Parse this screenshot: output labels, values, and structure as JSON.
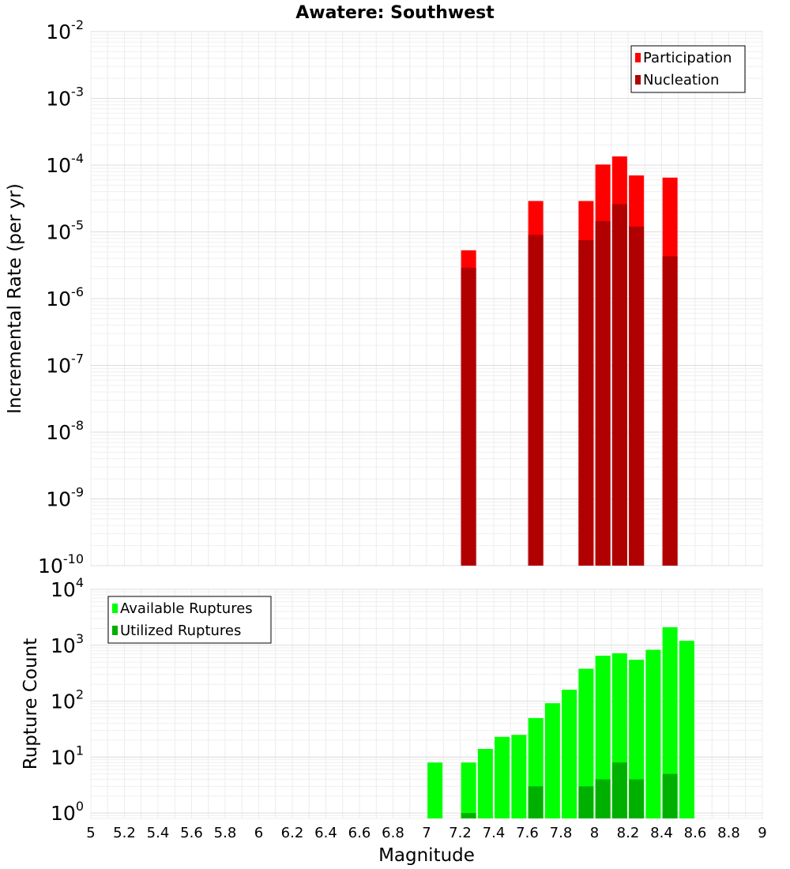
{
  "chart_data": [
    {
      "type": "bar",
      "panel": "top",
      "title": "Awatere: Southwest",
      "xlabel": "Magnitude",
      "ylabel": "Incremental Rate (per yr)",
      "xlim": [
        5,
        9
      ],
      "ylim": [
        1e-10,
        0.01
      ],
      "yscale": "log",
      "grid": true,
      "legend_position": "top-right",
      "yticks": [
        {
          "base": "10",
          "exp": "-10"
        },
        {
          "base": "10",
          "exp": "-9"
        },
        {
          "base": "10",
          "exp": "-8"
        },
        {
          "base": "10",
          "exp": "-7"
        },
        {
          "base": "10",
          "exp": "-6"
        },
        {
          "base": "10",
          "exp": "-5"
        },
        {
          "base": "10",
          "exp": "-4"
        },
        {
          "base": "10",
          "exp": "-3"
        },
        {
          "base": "10",
          "exp": "-2"
        }
      ],
      "x": [
        7.25,
        7.65,
        7.95,
        8.05,
        8.15,
        8.25,
        8.45
      ],
      "series": [
        {
          "name": "Participation",
          "color": "#ff0000",
          "values": [
            5.3e-06,
            2.9e-05,
            2.9e-05,
            0.000102,
            0.000135,
            7e-05,
            6.5e-05
          ]
        },
        {
          "name": "Nucleation",
          "color": "#b00000",
          "values": [
            2.9e-06,
            9e-06,
            7.5e-06,
            1.45e-05,
            2.6e-05,
            1.2e-05,
            4.3e-06
          ]
        }
      ]
    },
    {
      "type": "bar",
      "panel": "bottom",
      "xlabel": "Magnitude",
      "ylabel": "Rupture Count",
      "xlim": [
        5,
        9
      ],
      "ylim": [
        0.8,
        10000
      ],
      "yscale": "log",
      "grid": true,
      "legend_position": "top-left",
      "yticks": [
        {
          "base": "10",
          "exp": "0"
        },
        {
          "base": "10",
          "exp": "1"
        },
        {
          "base": "10",
          "exp": "2"
        },
        {
          "base": "10",
          "exp": "3"
        },
        {
          "base": "10",
          "exp": "4"
        }
      ],
      "xticks": [
        "5",
        "5.2",
        "5.4",
        "5.6",
        "5.8",
        "6",
        "6.2",
        "6.4",
        "6.6",
        "6.8",
        "7",
        "7.2",
        "7.4",
        "7.6",
        "7.8",
        "8",
        "8.2",
        "8.4",
        "8.6",
        "8.8",
        "9"
      ],
      "x": [
        7.05,
        7.25,
        7.35,
        7.45,
        7.55,
        7.65,
        7.75,
        7.85,
        7.95,
        8.05,
        8.15,
        8.25,
        8.35,
        8.45,
        8.55
      ],
      "series": [
        {
          "name": "Available Ruptures",
          "color": "#00ff00",
          "values": [
            8,
            8,
            14,
            23,
            25,
            50,
            92,
            160,
            380,
            650,
            720,
            550,
            830,
            2100,
            1200
          ]
        },
        {
          "name": "Utilized Ruptures",
          "color": "#00b000",
          "values": [
            0,
            1,
            0,
            0,
            0,
            3,
            0,
            0,
            3,
            4,
            8,
            4,
            0,
            5,
            0
          ]
        }
      ]
    }
  ]
}
